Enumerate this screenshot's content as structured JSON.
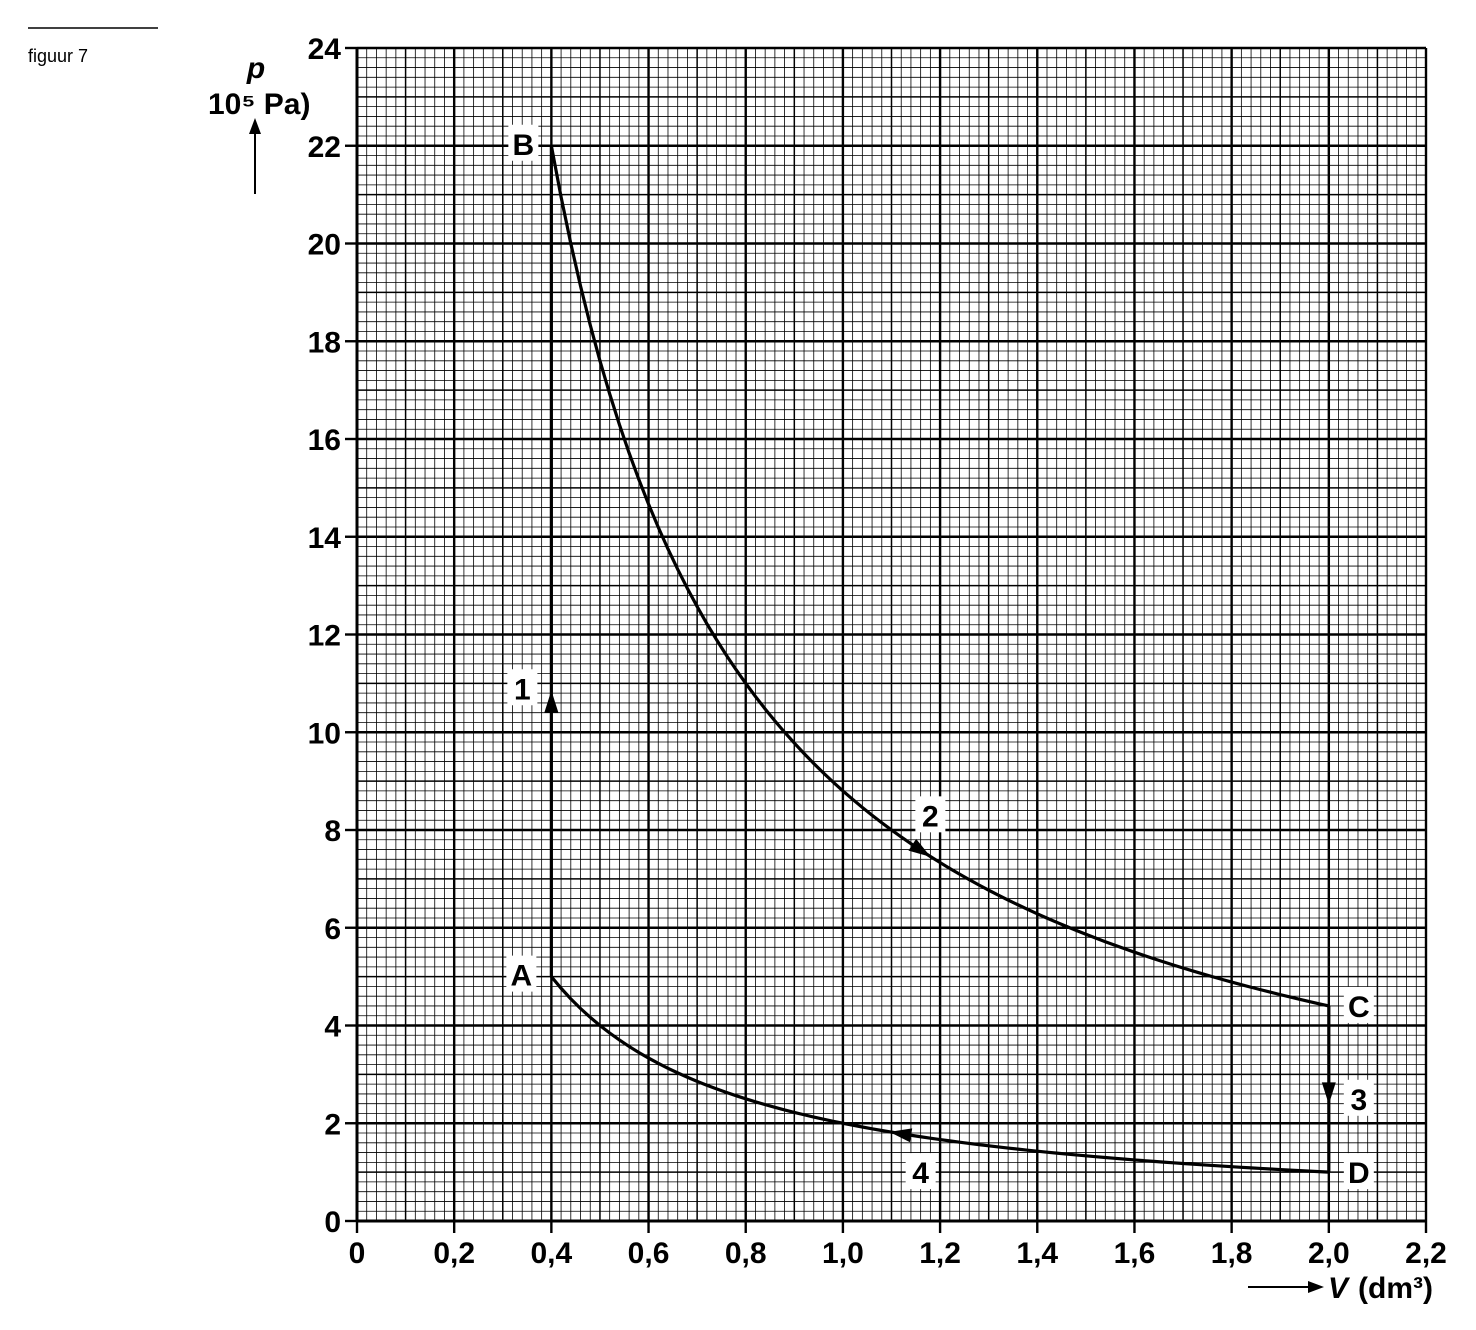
{
  "figure_label": "figuur 7",
  "chart_data": {
    "type": "line",
    "xlabel_symbol": "V",
    "xlabel_unit": "(dm³)",
    "ylabel_symbol": "p",
    "ylabel_unit": "10⁵ Pa)",
    "xlim": [
      0,
      2.2
    ],
    "ylim": [
      0,
      24
    ],
    "x_ticks": [
      {
        "v": 0,
        "label": "0"
      },
      {
        "v": 0.2,
        "label": "0,2"
      },
      {
        "v": 0.4,
        "label": "0,4"
      },
      {
        "v": 0.6,
        "label": "0,6"
      },
      {
        "v": 0.8,
        "label": "0,8"
      },
      {
        "v": 1.0,
        "label": "1,0"
      },
      {
        "v": 1.2,
        "label": "1,2"
      },
      {
        "v": 1.4,
        "label": "1,4"
      },
      {
        "v": 1.6,
        "label": "1,6"
      },
      {
        "v": 1.8,
        "label": "1,8"
      },
      {
        "v": 2.0,
        "label": "2,0"
      },
      {
        "v": 2.2,
        "label": "2,2"
      }
    ],
    "y_ticks": [
      {
        "v": 0,
        "label": "0"
      },
      {
        "v": 2,
        "label": "2"
      },
      {
        "v": 4,
        "label": "4"
      },
      {
        "v": 6,
        "label": "6"
      },
      {
        "v": 8,
        "label": "8"
      },
      {
        "v": 10,
        "label": "10"
      },
      {
        "v": 12,
        "label": "12"
      },
      {
        "v": 14,
        "label": "14"
      },
      {
        "v": 16,
        "label": "16"
      },
      {
        "v": 18,
        "label": "18"
      },
      {
        "v": 20,
        "label": "20"
      },
      {
        "v": 22,
        "label": "22"
      },
      {
        "v": 24,
        "label": "24"
      }
    ],
    "grid": true,
    "points": [
      {
        "name": "A",
        "x": 0.4,
        "y": 5.0
      },
      {
        "name": "B",
        "x": 0.4,
        "y": 22.0
      },
      {
        "name": "C",
        "x": 2.0,
        "y": 4.4
      },
      {
        "name": "D",
        "x": 2.0,
        "y": 1.0
      }
    ],
    "segments": [
      {
        "label": "1",
        "from": "A",
        "to": "B",
        "kind": "isochoric"
      },
      {
        "label": "2",
        "from": "B",
        "to": "C",
        "kind": "adiabatic"
      },
      {
        "label": "3",
        "from": "C",
        "to": "D",
        "kind": "isochoric"
      },
      {
        "label": "4",
        "from": "D",
        "to": "A",
        "kind": "isothermal"
      }
    ]
  }
}
